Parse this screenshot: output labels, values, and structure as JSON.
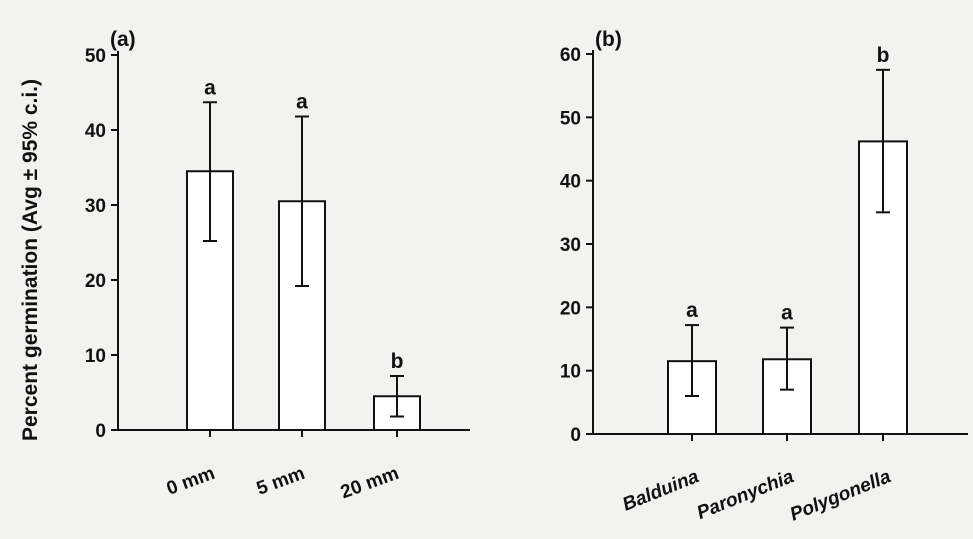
{
  "chart_data": [
    {
      "type": "bar",
      "panel_label": "(a)",
      "categories": [
        "0 mm",
        "5 mm",
        "20 mm"
      ],
      "values": [
        34.5,
        30.5,
        4.5
      ],
      "ci_low": [
        25.2,
        19.2,
        1.8
      ],
      "ci_high": [
        43.7,
        41.8,
        7.2
      ],
      "significance": [
        "a",
        "a",
        "b"
      ],
      "ylabel": "Percent germination (Avg ± 95% c.i.)",
      "ylim": [
        0,
        50
      ],
      "yticks": [
        "0",
        "10",
        "20",
        "30",
        "40",
        "50"
      ],
      "category_style": "normal",
      "grid": false
    },
    {
      "type": "bar",
      "panel_label": "(b)",
      "categories": [
        "Balduina",
        "Paronychia",
        "Polygonella"
      ],
      "values": [
        11.5,
        11.8,
        46.2
      ],
      "ci_low": [
        6.0,
        7.0,
        35.0
      ],
      "ci_high": [
        17.2,
        16.8,
        57.5
      ],
      "significance": [
        "a",
        "a",
        "b"
      ],
      "ylabel": "",
      "ylim": [
        0,
        60
      ],
      "yticks": [
        "0",
        "10",
        "20",
        "30",
        "40",
        "50",
        "60"
      ],
      "category_style": "italic",
      "grid": false
    }
  ]
}
